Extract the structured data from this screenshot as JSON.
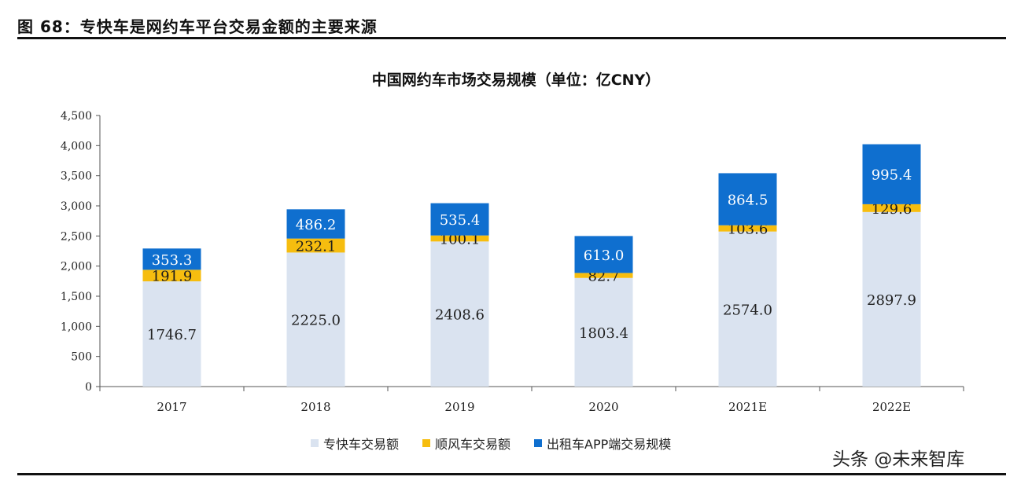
{
  "figure_title": "图 68：专快车是网约车平台交易金额的主要来源",
  "watermark": "头条 @未来智库",
  "chart_data": {
    "type": "bar",
    "stacked": true,
    "title": "中国网约车市场交易规模（单位：亿CNY）",
    "xlabel": "",
    "ylabel": "",
    "ylim": [
      0,
      4500
    ],
    "yticks": [
      "0",
      "500",
      "1,000",
      "1,500",
      "2,000",
      "2,500",
      "3,000",
      "3,500",
      "4,000",
      "4,500"
    ],
    "grid": false,
    "legend_position": "bottom",
    "categories": [
      "2017",
      "2018",
      "2019",
      "2020",
      "2021E",
      "2022E"
    ],
    "series": [
      {
        "name": "专快车交易额",
        "color": "#dae3f0",
        "label_color": "#222222",
        "values": [
          1746.7,
          2225.0,
          2408.6,
          1803.4,
          2574.0,
          2897.9
        ],
        "labels": [
          "1746.7",
          "2225.0",
          "2408.6",
          "1803.4",
          "2574.0",
          "2897.9"
        ]
      },
      {
        "name": "顺风车交易额",
        "color": "#f6bd0f",
        "label_color": "#1c1c1c",
        "values": [
          191.9,
          232.1,
          100.1,
          82.7,
          103.6,
          129.6
        ],
        "labels": [
          "191.9",
          "232.1",
          "100.1",
          "82.7",
          "103.6",
          "129.6"
        ]
      },
      {
        "name": "出租车APP端交易规模",
        "color": "#0f6fcf",
        "label_color": "#ffffff",
        "values": [
          353.3,
          486.2,
          535.4,
          613.0,
          864.5,
          995.4
        ],
        "labels": [
          "353.3",
          "486.2",
          "535.4",
          "613.0",
          "864.5",
          "995.4"
        ]
      }
    ]
  }
}
